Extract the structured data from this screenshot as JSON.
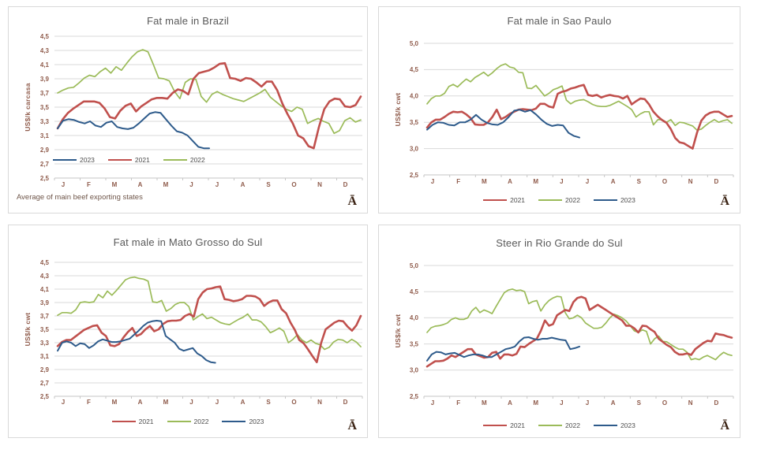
{
  "months": [
    "J",
    "F",
    "M",
    "A",
    "M",
    "J",
    "J",
    "A",
    "S",
    "O",
    "N",
    "D"
  ],
  "colors": {
    "series_2021": "#C0504D",
    "series_2022": "#9BBB59",
    "series_2023": "#2E5B8B",
    "gridline": "#DADADA",
    "axis_line": "#C6C6C6",
    "tick_text": "#8F5B4B",
    "title_text": "#595959",
    "footnote_text": "#6F564A",
    "corner_mark_text": "#3C2415",
    "panel_border": "#D9D9D9"
  },
  "chart_data": [
    {
      "type": "line",
      "title": "Fat male in Brazil",
      "ylabel": "US$/k carcasa",
      "xlabel": "",
      "ylim": [
        2.5,
        4.5
      ],
      "grid": true,
      "x_tick_labels": [
        "J",
        "F",
        "M",
        "A",
        "M",
        "J",
        "J",
        "A",
        "S",
        "O",
        "N",
        "D"
      ],
      "ytick_values": [
        2.5,
        2.7,
        2.9,
        3.1,
        3.3,
        3.5,
        3.7,
        3.9,
        4.1,
        4.3,
        4.5
      ],
      "ytick_labels": [
        "2,5",
        "2,7",
        "2,9",
        "3,1",
        "3,3",
        "3,5",
        "3,7",
        "3,9",
        "4,1",
        "4,3",
        "4,5"
      ],
      "legend": {
        "position": "inside-bottom-left",
        "items": [
          "2023",
          "2021",
          "2022"
        ]
      },
      "footnote": "Average  of main beef exporting states",
      "corner_mark": "Ā",
      "series": [
        {
          "name": "2021",
          "color": "#C0504D",
          "line_width": 2.6,
          "fraction_of_year": 1,
          "values": [
            3.2,
            3.33,
            3.42,
            3.48,
            3.53,
            3.58,
            3.58,
            3.58,
            3.56,
            3.48,
            3.36,
            3.34,
            3.45,
            3.52,
            3.55,
            3.44,
            3.51,
            3.56,
            3.61,
            3.63,
            3.63,
            3.62,
            3.7,
            3.75,
            3.73,
            3.68,
            3.9,
            3.98,
            4.0,
            4.02,
            4.06,
            4.11,
            4.12,
            3.91,
            3.9,
            3.87,
            3.91,
            3.9,
            3.85,
            3.79,
            3.86,
            3.86,
            3.74,
            3.55,
            3.4,
            3.27,
            3.1,
            3.06,
            2.95,
            2.92,
            3.22,
            3.47,
            3.58,
            3.62,
            3.61,
            3.51,
            3.5,
            3.53,
            3.65
          ]
        },
        {
          "name": "2022",
          "color": "#9BBB59",
          "line_width": 1.7,
          "fraction_of_year": 1,
          "values": [
            3.7,
            3.74,
            3.77,
            3.78,
            3.84,
            3.91,
            3.95,
            3.93,
            4.0,
            4.05,
            3.98,
            4.07,
            4.02,
            4.12,
            4.21,
            4.28,
            4.31,
            4.28,
            4.1,
            3.91,
            3.9,
            3.87,
            3.72,
            3.62,
            3.85,
            3.9,
            3.89,
            3.65,
            3.57,
            3.68,
            3.72,
            3.68,
            3.65,
            3.62,
            3.6,
            3.58,
            3.62,
            3.66,
            3.7,
            3.75,
            3.64,
            3.58,
            3.52,
            3.47,
            3.44,
            3.5,
            3.47,
            3.27,
            3.31,
            3.34,
            3.3,
            3.27,
            3.13,
            3.17,
            3.31,
            3.35,
            3.29,
            3.32
          ]
        },
        {
          "name": "2023",
          "color": "#2E5B8B",
          "line_width": 2.0,
          "fraction_of_year": 0.5,
          "values": [
            3.2,
            3.31,
            3.33,
            3.32,
            3.29,
            3.27,
            3.3,
            3.24,
            3.22,
            3.28,
            3.3,
            3.22,
            3.2,
            3.19,
            3.21,
            3.27,
            3.34,
            3.41,
            3.43,
            3.42,
            3.33,
            3.24,
            3.16,
            3.14,
            3.1,
            3.02,
            2.94,
            2.92,
            2.92
          ]
        }
      ]
    },
    {
      "type": "line",
      "title": "Fat male in Sao Paulo",
      "ylabel": "US$/k cwt",
      "xlabel": "",
      "ylim": [
        2.5,
        5.0
      ],
      "grid": true,
      "x_tick_labels": [
        "J",
        "F",
        "M",
        "A",
        "M",
        "J",
        "J",
        "A",
        "S",
        "O",
        "N",
        "D"
      ],
      "ytick_values": [
        2.5,
        3.0,
        3.5,
        4.0,
        4.5,
        5.0
      ],
      "ytick_labels": [
        "2,5",
        "3,0",
        "3,5",
        "4,0",
        "4,5",
        "5,0"
      ],
      "legend": {
        "position": "below",
        "items": [
          "2021",
          "2022",
          "2023"
        ]
      },
      "corner_mark": "Ā",
      "series": [
        {
          "name": "2021",
          "color": "#C0504D",
          "line_width": 2.6,
          "fraction_of_year": 1,
          "values": [
            3.4,
            3.5,
            3.55,
            3.55,
            3.6,
            3.66,
            3.7,
            3.69,
            3.7,
            3.65,
            3.58,
            3.46,
            3.45,
            3.45,
            3.5,
            3.6,
            3.74,
            3.56,
            3.6,
            3.66,
            3.7,
            3.74,
            3.75,
            3.74,
            3.73,
            3.76,
            3.85,
            3.85,
            3.8,
            3.78,
            4.04,
            4.08,
            4.1,
            4.14,
            4.16,
            4.19,
            4.21,
            4.02,
            4.0,
            4.02,
            3.97,
            4.0,
            4.02,
            4.0,
            3.99,
            3.95,
            4.0,
            3.84,
            3.9,
            3.95,
            3.94,
            3.84,
            3.7,
            3.61,
            3.54,
            3.49,
            3.37,
            3.2,
            3.12,
            3.1,
            3.05,
            3.0,
            3.3,
            3.53,
            3.63,
            3.68,
            3.7,
            3.7,
            3.65,
            3.6,
            3.62
          ]
        },
        {
          "name": "2022",
          "color": "#9BBB59",
          "line_width": 1.7,
          "fraction_of_year": 1,
          "values": [
            3.85,
            3.95,
            4.0,
            4.0,
            4.05,
            4.18,
            4.22,
            4.17,
            4.25,
            4.32,
            4.27,
            4.35,
            4.4,
            4.45,
            4.38,
            4.44,
            4.52,
            4.58,
            4.61,
            4.55,
            4.53,
            4.45,
            4.44,
            4.15,
            4.14,
            4.2,
            4.1,
            4.0,
            4.05,
            4.12,
            4.15,
            4.19,
            3.92,
            3.85,
            3.9,
            3.92,
            3.93,
            3.89,
            3.84,
            3.81,
            3.8,
            3.8,
            3.82,
            3.86,
            3.9,
            3.85,
            3.8,
            3.74,
            3.6,
            3.66,
            3.7,
            3.7,
            3.45,
            3.55,
            3.55,
            3.5,
            3.55,
            3.44,
            3.5,
            3.49,
            3.46,
            3.43,
            3.35,
            3.37,
            3.44,
            3.5,
            3.55,
            3.5,
            3.53,
            3.55,
            3.48
          ]
        },
        {
          "name": "2023",
          "color": "#2E5B8B",
          "line_width": 2.0,
          "fraction_of_year": 0.5,
          "values": [
            3.36,
            3.45,
            3.5,
            3.49,
            3.45,
            3.44,
            3.5,
            3.5,
            3.55,
            3.64,
            3.55,
            3.49,
            3.46,
            3.45,
            3.5,
            3.6,
            3.72,
            3.74,
            3.7,
            3.73,
            3.65,
            3.55,
            3.47,
            3.43,
            3.45,
            3.44,
            3.3,
            3.24,
            3.21
          ]
        }
      ]
    },
    {
      "type": "line",
      "title": "Fat male in Mato Grosso do Sul",
      "ylabel": "US$/k cwt",
      "xlabel": "",
      "ylim": [
        2.5,
        4.5
      ],
      "grid": true,
      "x_tick_labels": [
        "J",
        "F",
        "M",
        "A",
        "M",
        "J",
        "J",
        "A",
        "S",
        "O",
        "N",
        "D"
      ],
      "ytick_values": [
        2.5,
        2.7,
        2.9,
        3.1,
        3.3,
        3.5,
        3.7,
        3.9,
        4.1,
        4.3,
        4.5
      ],
      "ytick_labels": [
        "2,5",
        "2,7",
        "2,9",
        "3,1",
        "3,3",
        "3,5",
        "3,7",
        "3,9",
        "4,1",
        "4,3",
        "4,5"
      ],
      "legend": {
        "position": "below",
        "items": [
          "2021",
          "2022",
          "2023"
        ]
      },
      "corner_mark": "Ā",
      "series": [
        {
          "name": "2021",
          "color": "#C0504D",
          "line_width": 2.6,
          "fraction_of_year": 1,
          "values": [
            3.25,
            3.31,
            3.34,
            3.34,
            3.39,
            3.44,
            3.49,
            3.52,
            3.55,
            3.56,
            3.45,
            3.4,
            3.26,
            3.25,
            3.28,
            3.38,
            3.46,
            3.52,
            3.4,
            3.43,
            3.5,
            3.55,
            3.47,
            3.5,
            3.58,
            3.62,
            3.63,
            3.63,
            3.64,
            3.7,
            3.73,
            3.69,
            3.95,
            4.05,
            4.1,
            4.11,
            4.13,
            4.14,
            3.95,
            3.94,
            3.92,
            3.93,
            3.95,
            4.0,
            4.0,
            3.99,
            3.95,
            3.85,
            3.9,
            3.93,
            3.93,
            3.8,
            3.74,
            3.6,
            3.49,
            3.34,
            3.29,
            3.2,
            3.1,
            3.01,
            3.3,
            3.5,
            3.55,
            3.6,
            3.63,
            3.62,
            3.54,
            3.48,
            3.56,
            3.7
          ]
        },
        {
          "name": "2022",
          "color": "#9BBB59",
          "line_width": 1.7,
          "fraction_of_year": 1,
          "values": [
            3.71,
            3.75,
            3.75,
            3.74,
            3.79,
            3.9,
            3.91,
            3.9,
            3.91,
            4.02,
            3.97,
            4.07,
            4.01,
            4.08,
            4.16,
            4.24,
            4.27,
            4.28,
            4.26,
            4.25,
            4.22,
            3.91,
            3.9,
            3.93,
            3.77,
            3.81,
            3.87,
            3.9,
            3.9,
            3.84,
            3.64,
            3.69,
            3.73,
            3.66,
            3.68,
            3.64,
            3.6,
            3.58,
            3.57,
            3.61,
            3.65,
            3.68,
            3.73,
            3.64,
            3.64,
            3.61,
            3.54,
            3.45,
            3.48,
            3.52,
            3.47,
            3.3,
            3.35,
            3.42,
            3.34,
            3.3,
            3.34,
            3.29,
            3.27,
            3.2,
            3.23,
            3.31,
            3.35,
            3.34,
            3.3,
            3.35,
            3.31,
            3.24
          ]
        },
        {
          "name": "2023",
          "color": "#2E5B8B",
          "line_width": 2.0,
          "fraction_of_year": 0.52,
          "values": [
            3.18,
            3.3,
            3.32,
            3.3,
            3.25,
            3.29,
            3.28,
            3.22,
            3.26,
            3.32,
            3.35,
            3.33,
            3.31,
            3.31,
            3.32,
            3.34,
            3.36,
            3.42,
            3.48,
            3.55,
            3.6,
            3.62,
            3.63,
            3.62,
            3.4,
            3.35,
            3.3,
            3.21,
            3.18,
            3.2,
            3.22,
            3.14,
            3.1,
            3.04,
            3.01,
            3.0
          ]
        }
      ]
    },
    {
      "type": "line",
      "title": "Steer  in Rio Grande do Sul",
      "ylabel": "US$/k cwt",
      "xlabel": "",
      "ylim": [
        2.5,
        5.0
      ],
      "grid": true,
      "x_tick_labels": [
        "J",
        "F",
        "M",
        "A",
        "M",
        "J",
        "J",
        "A",
        "S",
        "O",
        "N",
        "D"
      ],
      "ytick_values": [
        2.5,
        3.0,
        3.5,
        4.0,
        4.5,
        5.0
      ],
      "ytick_labels": [
        "2,5",
        "3,0",
        "3,5",
        "4,0",
        "4,5",
        "5,0"
      ],
      "legend": {
        "position": "below",
        "items": [
          "2021",
          "2022",
          "2023"
        ]
      },
      "corner_mark": "Ā",
      "series": [
        {
          "name": "2021",
          "color": "#C0504D",
          "line_width": 2.6,
          "fraction_of_year": 1,
          "values": [
            3.07,
            3.12,
            3.17,
            3.17,
            3.18,
            3.22,
            3.28,
            3.25,
            3.3,
            3.35,
            3.4,
            3.4,
            3.3,
            3.27,
            3.24,
            3.25,
            3.33,
            3.35,
            3.22,
            3.3,
            3.3,
            3.28,
            3.31,
            3.45,
            3.44,
            3.5,
            3.55,
            3.6,
            3.75,
            3.95,
            3.85,
            3.88,
            4.05,
            4.1,
            4.15,
            4.13,
            4.3,
            4.38,
            4.4,
            4.37,
            4.15,
            4.2,
            4.25,
            4.2,
            4.15,
            4.1,
            4.05,
            4.0,
            3.95,
            3.85,
            3.85,
            3.8,
            3.72,
            3.85,
            3.84,
            3.78,
            3.73,
            3.6,
            3.54,
            3.48,
            3.44,
            3.35,
            3.3,
            3.3,
            3.32,
            3.29,
            3.4,
            3.46,
            3.52,
            3.56,
            3.55,
            3.7,
            3.68,
            3.67,
            3.64,
            3.62
          ]
        },
        {
          "name": "2022",
          "color": "#9BBB59",
          "line_width": 1.7,
          "fraction_of_year": 1,
          "values": [
            3.72,
            3.81,
            3.84,
            3.85,
            3.87,
            3.9,
            3.97,
            4.0,
            3.97,
            3.97,
            4.0,
            4.13,
            4.2,
            4.1,
            4.15,
            4.12,
            4.08,
            4.22,
            4.35,
            4.48,
            4.53,
            4.55,
            4.52,
            4.53,
            4.5,
            4.27,
            4.31,
            4.33,
            4.13,
            4.25,
            4.33,
            4.38,
            4.41,
            4.4,
            4.1,
            3.98,
            4.0,
            4.05,
            4.0,
            3.9,
            3.85,
            3.8,
            3.8,
            3.82,
            3.9,
            4.0,
            4.07,
            4.04,
            4.0,
            3.94,
            3.85,
            3.75,
            3.72,
            3.77,
            3.74,
            3.5,
            3.6,
            3.65,
            3.55,
            3.54,
            3.49,
            3.44,
            3.4,
            3.4,
            3.34,
            3.2,
            3.22,
            3.2,
            3.25,
            3.28,
            3.24,
            3.2,
            3.28,
            3.34,
            3.3,
            3.28
          ]
        },
        {
          "name": "2023",
          "color": "#2E5B8B",
          "line_width": 2.0,
          "fraction_of_year": 0.5,
          "values": [
            3.18,
            3.3,
            3.35,
            3.34,
            3.3,
            3.32,
            3.33,
            3.29,
            3.25,
            3.28,
            3.3,
            3.3,
            3.28,
            3.25,
            3.25,
            3.3,
            3.35,
            3.4,
            3.42,
            3.45,
            3.55,
            3.62,
            3.63,
            3.6,
            3.58,
            3.6,
            3.6,
            3.62,
            3.6,
            3.58,
            3.57,
            3.4,
            3.42,
            3.45
          ]
        }
      ]
    }
  ]
}
